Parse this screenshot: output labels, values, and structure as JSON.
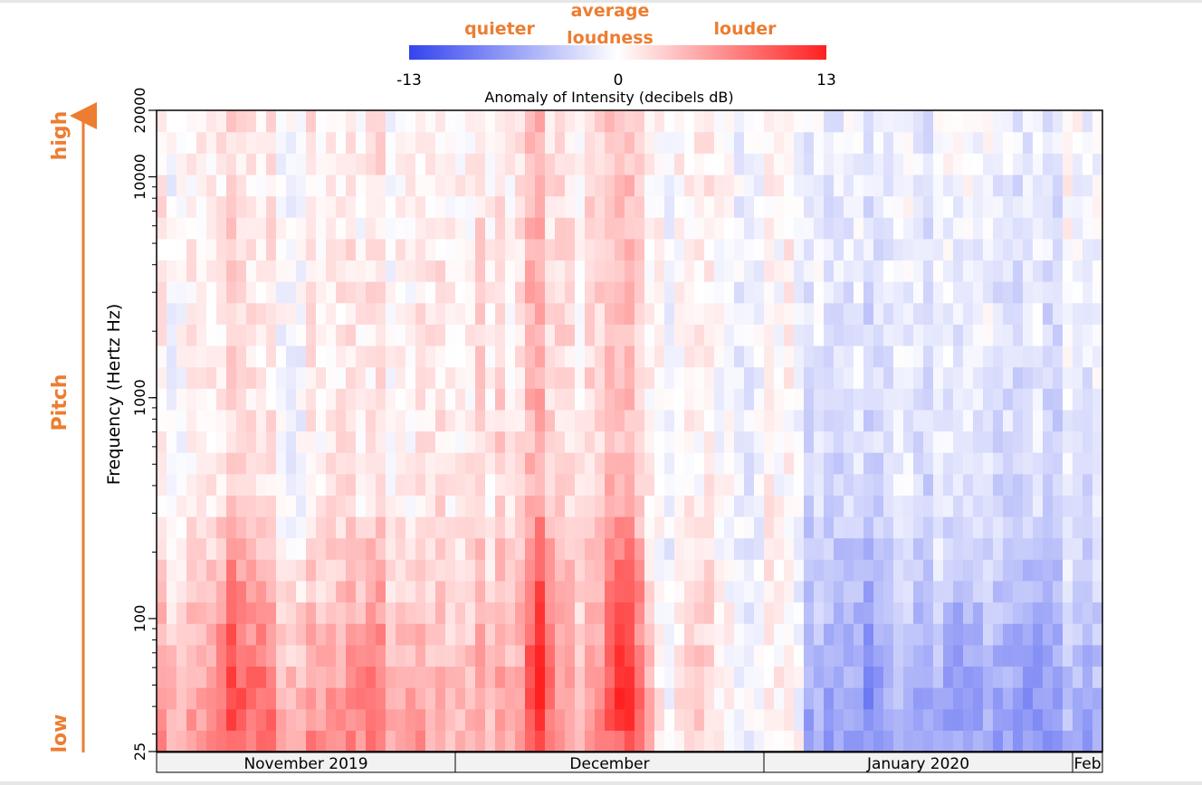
{
  "colorbar": {
    "min_label": "-13",
    "zero_label": "0",
    "max_label": "13",
    "title": "Anomaly of Intensity (decibels dB)",
    "quieter_label": "quieter",
    "average_line1": "average",
    "average_line2": "loudness",
    "louder_label": "louder",
    "colors": {
      "low": "#3344ee",
      "mid": "#ffffff",
      "high": "#ff2020"
    }
  },
  "side": {
    "high_label": "high",
    "pitch_label": "Pitch",
    "low_label": "low",
    "arrow_color": "#ed7d31"
  },
  "chart_data": {
    "type": "heatmap",
    "title": "",
    "xlabel": "",
    "ylabel": "Frequency (Hertz Hz)",
    "y_scale": "log",
    "y_ticks": [
      "25",
      "100",
      "1000",
      "10000",
      "20000"
    ],
    "ylim": [
      25,
      20000
    ],
    "x_months": [
      {
        "label": "November 2019",
        "days": 30
      },
      {
        "label": "December",
        "days": 31
      },
      {
        "label": "January 2020",
        "days": 31
      },
      {
        "label": "Feb",
        "days": 3
      }
    ],
    "value_range": [
      -13,
      13
    ],
    "units": "dB",
    "n_days": 95,
    "n_frequency_bands": 30,
    "trend_rows_low_to_high": [
      3,
      6,
      7,
      7,
      7,
      6,
      6,
      6,
      5,
      4,
      3,
      2,
      1.5,
      1,
      0.5,
      0,
      0,
      0.5,
      1,
      1.5,
      2,
      2,
      1.5,
      1,
      1,
      1,
      1,
      1,
      1,
      1
    ],
    "day_events": [
      {
        "day": 7,
        "amplitude": 4
      },
      {
        "day": 10,
        "amplitude": 3
      },
      {
        "day": 21,
        "amplitude": 3
      },
      {
        "day": 38,
        "amplitude": 5
      },
      {
        "day": 46,
        "amplitude": 4
      },
      {
        "day": 47,
        "amplitude": 3
      },
      {
        "day": 54,
        "amplitude": 2
      },
      {
        "day": 71,
        "amplitude": -2
      },
      {
        "day": 80,
        "amplitude": -2
      },
      {
        "day": 88,
        "amplitude": -2
      }
    ],
    "regimes": [
      {
        "from_day": 0,
        "to_day": 27,
        "low_freq": 6,
        "mid_freq": 0.5,
        "high_freq": 0.5
      },
      {
        "from_day": 27,
        "to_day": 50,
        "low_freq": 5,
        "mid_freq": 1.5,
        "high_freq": 1
      },
      {
        "from_day": 50,
        "to_day": 65,
        "low_freq": 0.5,
        "mid_freq": -0.5,
        "high_freq": 0
      },
      {
        "from_day": 65,
        "to_day": 95,
        "low_freq": -6,
        "mid_freq": -2,
        "high_freq": -0.5
      }
    ]
  }
}
